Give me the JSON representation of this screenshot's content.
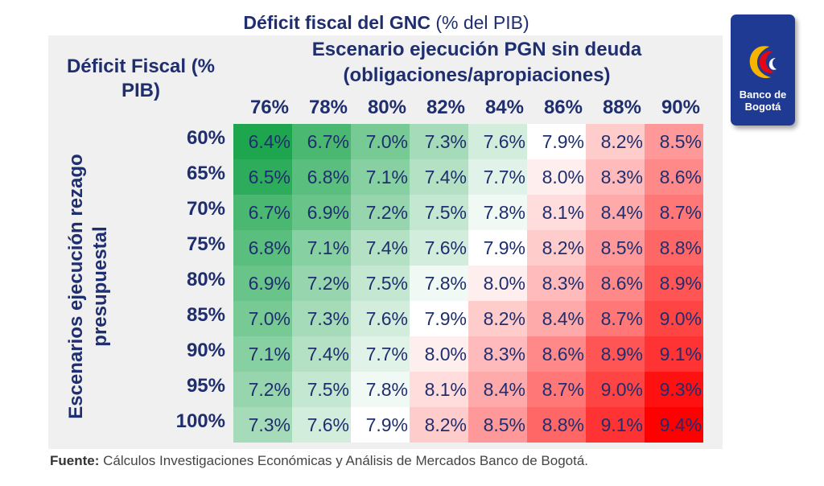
{
  "title": {
    "bold": "Déficit fiscal del GNC",
    "rest": " (% del PIB)"
  },
  "corner_label": "Déficit Fiscal (% PIB)",
  "column_group_label": "Escenario ejecución PGN sin deuda (obligaciones/apropiaciones)",
  "row_group_label": "Escenarios ejecución rezago presupuestal",
  "source": {
    "label": "Fuente:",
    "text": " Cálculos Investigaciones Económicas y Análisis de Mercados Banco de Bogotá."
  },
  "logo": {
    "line1": "Banco de",
    "line2": "Bogotá",
    "icon": "banco-de-bogota-logo-icon"
  },
  "colors": {
    "text": "#1f2e6e",
    "green": "#1ea64f",
    "red": "#ff0000",
    "mid": "#ffffff"
  },
  "chart_data": {
    "type": "heatmap",
    "title": "Déficit fiscal del GNC (% del PIB)",
    "xlabel": "Escenario ejecución PGN sin deuda (obligaciones/apropiaciones)",
    "ylabel": "Escenarios ejecución rezago presupuestal",
    "x": [
      "76%",
      "78%",
      "80%",
      "82%",
      "84%",
      "86%",
      "88%",
      "90%"
    ],
    "y": [
      "60%",
      "65%",
      "70%",
      "75%",
      "80%",
      "85%",
      "90%",
      "95%",
      "100%"
    ],
    "values": [
      [
        "6.4%",
        "6.7%",
        "7.0%",
        "7.3%",
        "7.6%",
        "7.9%",
        "8.2%",
        "8.5%"
      ],
      [
        "6.5%",
        "6.8%",
        "7.1%",
        "7.4%",
        "7.7%",
        "8.0%",
        "8.3%",
        "8.6%"
      ],
      [
        "6.7%",
        "6.9%",
        "7.2%",
        "7.5%",
        "7.8%",
        "8.1%",
        "8.4%",
        "8.7%"
      ],
      [
        "6.8%",
        "7.1%",
        "7.4%",
        "7.6%",
        "7.9%",
        "8.2%",
        "8.5%",
        "8.8%"
      ],
      [
        "6.9%",
        "7.2%",
        "7.5%",
        "7.8%",
        "8.0%",
        "8.3%",
        "8.6%",
        "8.9%"
      ],
      [
        "7.0%",
        "7.3%",
        "7.6%",
        "7.9%",
        "8.2%",
        "8.4%",
        "8.7%",
        "9.0%"
      ],
      [
        "7.1%",
        "7.4%",
        "7.7%",
        "8.0%",
        "8.3%",
        "8.6%",
        "8.9%",
        "9.1%"
      ],
      [
        "7.2%",
        "7.5%",
        "7.8%",
        "8.1%",
        "8.4%",
        "8.7%",
        "9.0%",
        "9.3%"
      ],
      [
        "7.3%",
        "7.6%",
        "7.9%",
        "8.2%",
        "8.5%",
        "8.8%",
        "9.1%",
        "9.4%"
      ]
    ],
    "color_scale": "green-white-red"
  }
}
